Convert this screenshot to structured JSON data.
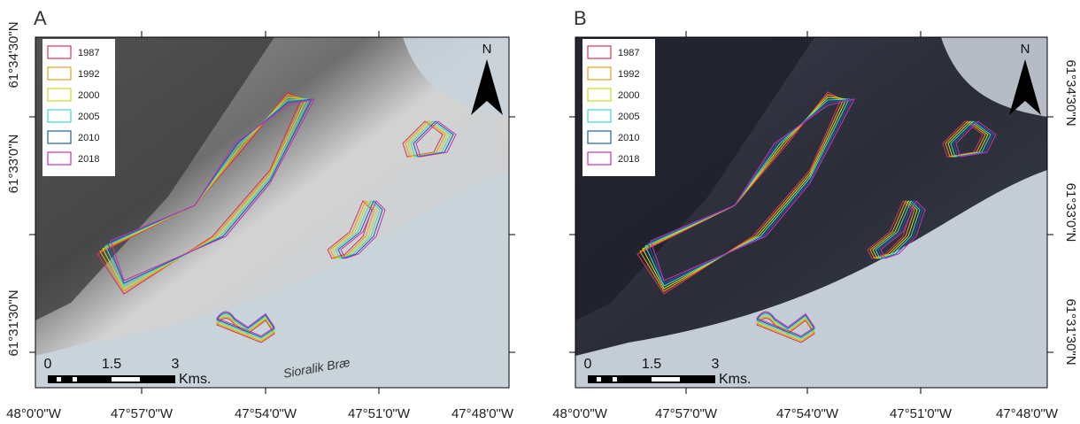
{
  "panels": [
    {
      "label": "A",
      "legend": [
        {
          "label": "1987",
          "color": "#d8344f"
        },
        {
          "label": "1992",
          "color": "#e2a21c"
        },
        {
          "label": "2000",
          "color": "#c9dc1e"
        },
        {
          "label": "2005",
          "color": "#3fd6d2"
        },
        {
          "label": "2010",
          "color": "#1f5f9f"
        },
        {
          "label": "2018",
          "color": "#c232b4"
        }
      ],
      "lat_labels": [
        "61°34'30\"N",
        "61°33'0\"N",
        "61°31'30\"N"
      ],
      "lon_labels": [
        "48°0'0\"W",
        "47°57'0\"W",
        "47°54'0\"W",
        "47°51'0\"W",
        "47°48'0\"W"
      ],
      "scale_labels": [
        "0",
        "1.5",
        "3"
      ],
      "scale_unit": "Kms.",
      "north": "N",
      "annotation": "Sioralik Bræ"
    },
    {
      "label": "B",
      "legend": [
        {
          "label": "1987",
          "color": "#d8344f"
        },
        {
          "label": "1992",
          "color": "#e2a21c"
        },
        {
          "label": "2000",
          "color": "#c9dc1e"
        },
        {
          "label": "2005",
          "color": "#3fd6d2"
        },
        {
          "label": "2010",
          "color": "#1f5f9f"
        },
        {
          "label": "2018",
          "color": "#c232b4"
        }
      ],
      "lat_labels": [
        "61°34'30\"N",
        "61°33'0\"N",
        "61°31'30\"N"
      ],
      "lon_labels": [
        "48°0'0\"W",
        "47°57'0\"W",
        "47°54'0\"W",
        "47°51'0\"W",
        "47°48'0\"W"
      ],
      "scale_labels": [
        "0",
        "1.5",
        "3"
      ],
      "scale_unit": "Kms.",
      "north": "N"
    }
  ]
}
